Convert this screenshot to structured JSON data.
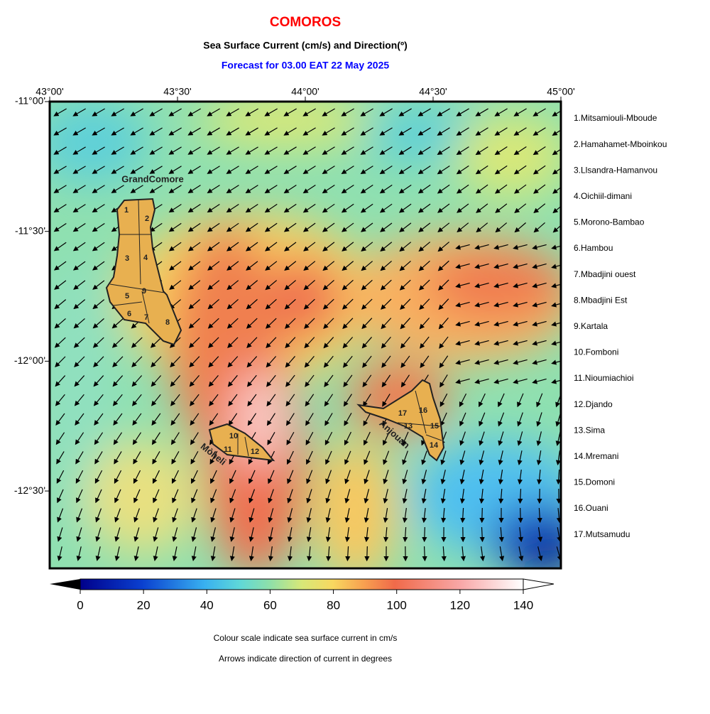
{
  "header": {
    "title": "COMOROS",
    "subtitle": "Sea Surface Current (cm/s) and Direction(º)",
    "forecast": "Forecast for  03.00 EAT 22 May 2025"
  },
  "map": {
    "lon_labels": [
      "43°00'",
      "43°30'",
      "44°00'",
      "44°30'",
      "45°00'"
    ],
    "lat_labels": [
      "-11°00'",
      "-11°30'",
      "-12°00'",
      "-12°30'"
    ],
    "islands": [
      "GrandComore",
      "Mòheli",
      "Anjouan"
    ],
    "district_numbers": [
      "1",
      "2",
      "3",
      "4",
      "5",
      "6",
      "7",
      "8",
      "9",
      "10",
      "11",
      "12",
      "13",
      "14",
      "15",
      "16",
      "17"
    ]
  },
  "legend": {
    "items": [
      "1.Mitsamiouli-Mboude",
      "2.Hamahamet-Mboinkou",
      "3.Llsandra-Hamanvou",
      "4.Oichiil-dimani",
      "5.Morono-Bambao",
      "6.Hambou",
      "7.Mbadjini ouest",
      "8.Mbadjini Est",
      "9.Kartala",
      "10.Fomboni",
      "11.Nioumiachioi",
      "12.Djando",
      "13.Sima",
      "14.Mremani",
      "15.Domoni",
      "16.Ouani",
      "17.Mutsamudu"
    ]
  },
  "colorbar": {
    "lim": [
      0,
      140
    ],
    "ticks": [
      0,
      20,
      40,
      60,
      80,
      100,
      120,
      140
    ]
  },
  "footnotes": [
    "Colour scale indicate sea surface current in cm/s",
    "Arrows indicate direction of current in degrees"
  ]
}
